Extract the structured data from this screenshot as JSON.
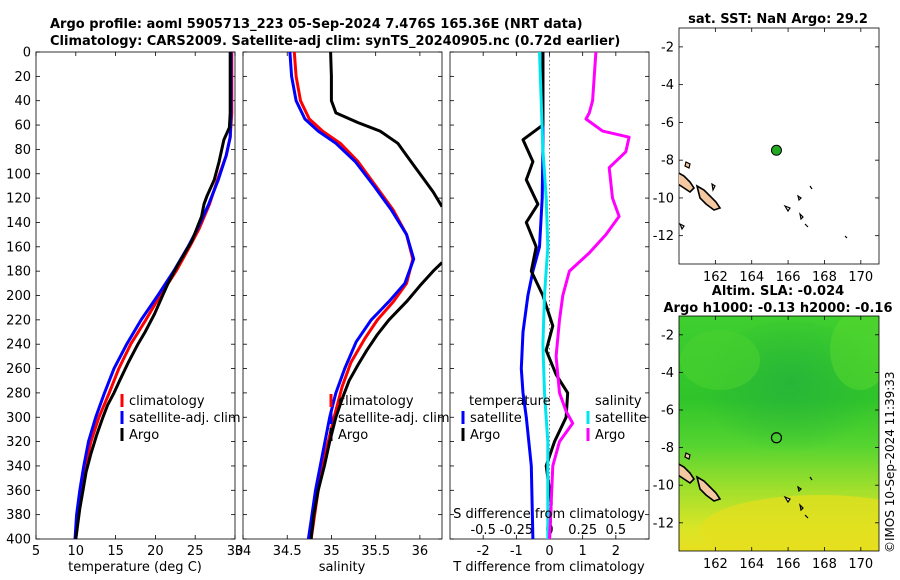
{
  "title": {
    "line1": "Argo profile: aoml 5905713_223 05-Sep-2024 7.476S 165.36E (NRT data)",
    "line2": "Climatology: CARS2009. Satellite-adj clim: synTS_20240905.nc (0.72d earlier)"
  },
  "credit": "©IMOS 10-Sep-2024 11:39:33",
  "depth_axis": {
    "ylim": [
      0,
      400
    ],
    "ticks": [
      0,
      20,
      40,
      60,
      80,
      100,
      120,
      140,
      160,
      180,
      200,
      220,
      240,
      260,
      280,
      300,
      320,
      340,
      360,
      380,
      400
    ]
  },
  "colors": {
    "climatology": "#ff0000",
    "satellite": "#0000ff",
    "argo": "#000000",
    "sat_diff": "#00e5ee",
    "argo_sal_diff": "#ff00ff"
  },
  "chart_data": [
    {
      "type": "line",
      "name": "temperature-profile",
      "xlabel": "temperature (deg C)",
      "xlim": [
        5,
        30
      ],
      "xticks": [
        5,
        10,
        15,
        20,
        25,
        30
      ],
      "legend": [
        "climatology",
        "satellite-adj. clim",
        "Argo"
      ],
      "series": [
        {
          "name": "climatology",
          "color": "#ff0000",
          "points": [
            [
              29.6,
              0
            ],
            [
              29.6,
              20
            ],
            [
              29.6,
              50
            ],
            [
              29.4,
              70
            ],
            [
              28.9,
              85
            ],
            [
              27.8,
              105
            ],
            [
              26.8,
              125
            ],
            [
              25.5,
              145
            ],
            [
              24.3,
              160
            ],
            [
              22.6,
              180
            ],
            [
              20.6,
              200
            ],
            [
              18.8,
              220
            ],
            [
              16.9,
              240
            ],
            [
              15.4,
              260
            ],
            [
              14.2,
              280
            ],
            [
              12.9,
              300
            ],
            [
              11.9,
              320
            ],
            [
              11.2,
              340
            ],
            [
              10.7,
              360
            ],
            [
              10.3,
              380
            ],
            [
              10.0,
              400
            ]
          ]
        },
        {
          "name": "satellite-adj. clim",
          "color": "#0000ff",
          "points": [
            [
              29.5,
              0
            ],
            [
              29.5,
              20
            ],
            [
              29.5,
              50
            ],
            [
              29.4,
              70
            ],
            [
              28.9,
              85
            ],
            [
              27.9,
              105
            ],
            [
              26.7,
              125
            ],
            [
              25.3,
              145
            ],
            [
              24.1,
              160
            ],
            [
              22.3,
              180
            ],
            [
              20.3,
              200
            ],
            [
              18.2,
              220
            ],
            [
              16.4,
              240
            ],
            [
              14.8,
              260
            ],
            [
              13.6,
              280
            ],
            [
              12.5,
              300
            ],
            [
              11.6,
              320
            ],
            [
              11.0,
              340
            ],
            [
              10.5,
              360
            ],
            [
              10.1,
              380
            ],
            [
              9.9,
              400
            ]
          ]
        },
        {
          "name": "Argo",
          "color": "#000000",
          "points": [
            [
              29.4,
              0
            ],
            [
              29.4,
              20
            ],
            [
              29.4,
              50
            ],
            [
              29.3,
              62
            ],
            [
              28.6,
              72
            ],
            [
              28.0,
              90
            ],
            [
              27.4,
              105
            ],
            [
              26.5,
              118
            ],
            [
              26.1,
              125
            ],
            [
              25.8,
              135
            ],
            [
              25.2,
              145
            ],
            [
              24.6,
              155
            ],
            [
              23.7,
              165
            ],
            [
              22.8,
              175
            ],
            [
              21.6,
              190
            ],
            [
              20.9,
              200
            ],
            [
              19.9,
              215
            ],
            [
              18.7,
              230
            ],
            [
              17.8,
              240
            ],
            [
              16.6,
              255
            ],
            [
              15.5,
              270
            ],
            [
              14.8,
              280
            ],
            [
              14.0,
              290
            ],
            [
              13.4,
              300
            ],
            [
              12.6,
              315
            ],
            [
              11.9,
              330
            ],
            [
              11.3,
              345
            ],
            [
              10.9,
              360
            ],
            [
              10.5,
              375
            ],
            [
              10.2,
              390
            ],
            [
              10.0,
              400
            ]
          ]
        }
      ]
    },
    {
      "type": "line",
      "name": "salinity-profile",
      "xlabel": "salinity",
      "xlim": [
        34.0,
        36.25
      ],
      "xticks": [
        34,
        34.5,
        35,
        35.5,
        36
      ],
      "xticklabels": [
        "34",
        "34.5",
        "35",
        "35.5",
        "36"
      ],
      "series": [
        {
          "name": "climatology",
          "color": "#ff0000",
          "points": [
            [
              34.58,
              0
            ],
            [
              34.6,
              20
            ],
            [
              34.65,
              40
            ],
            [
              34.75,
              55
            ],
            [
              34.9,
              65
            ],
            [
              35.1,
              75
            ],
            [
              35.3,
              90
            ],
            [
              35.5,
              110
            ],
            [
              35.7,
              130
            ],
            [
              35.85,
              150
            ],
            [
              35.92,
              170
            ],
            [
              35.85,
              190
            ],
            [
              35.7,
              205
            ],
            [
              35.52,
              220
            ],
            [
              35.38,
              235
            ],
            [
              35.22,
              255
            ],
            [
              35.12,
              275
            ],
            [
              35.03,
              300
            ],
            [
              34.93,
              330
            ],
            [
              34.85,
              360
            ],
            [
              34.8,
              385
            ],
            [
              34.77,
              400
            ]
          ]
        },
        {
          "name": "satellite-adj. clim",
          "color": "#0000ff",
          "points": [
            [
              34.53,
              0
            ],
            [
              34.55,
              20
            ],
            [
              34.6,
              40
            ],
            [
              34.7,
              55
            ],
            [
              34.85,
              65
            ],
            [
              35.05,
              75
            ],
            [
              35.27,
              90
            ],
            [
              35.48,
              110
            ],
            [
              35.68,
              130
            ],
            [
              35.85,
              150
            ],
            [
              35.93,
              170
            ],
            [
              35.83,
              190
            ],
            [
              35.65,
              205
            ],
            [
              35.45,
              220
            ],
            [
              35.28,
              238
            ],
            [
              35.15,
              260
            ],
            [
              35.05,
              280
            ],
            [
              34.98,
              300
            ],
            [
              34.9,
              330
            ],
            [
              34.82,
              360
            ],
            [
              34.77,
              385
            ],
            [
              34.74,
              400
            ]
          ]
        },
        {
          "name": "Argo",
          "color": "#000000",
          "points": [
            [
              34.99,
              0
            ],
            [
              35.0,
              20
            ],
            [
              35.0,
              40
            ],
            [
              35.05,
              50
            ],
            [
              35.3,
              58
            ],
            [
              35.55,
              65
            ],
            [
              35.75,
              75
            ],
            [
              35.85,
              85
            ],
            [
              35.95,
              95
            ],
            [
              36.05,
              105
            ],
            [
              36.15,
              115
            ],
            [
              36.25,
              127
            ]
          ]
        },
        {
          "name": "Argo-deep",
          "color": "#000000",
          "points": [
            [
              36.25,
              173
            ],
            [
              36.15,
              180
            ],
            [
              36.0,
              192
            ],
            [
              35.85,
              205
            ],
            [
              35.65,
              220
            ],
            [
              35.52,
              232
            ],
            [
              35.4,
              245
            ],
            [
              35.3,
              257
            ],
            [
              35.2,
              270
            ],
            [
              35.12,
              285
            ],
            [
              35.05,
              300
            ],
            [
              34.98,
              320
            ],
            [
              34.92,
              340
            ],
            [
              34.85,
              360
            ],
            [
              34.8,
              380
            ],
            [
              34.77,
              400
            ]
          ]
        }
      ]
    },
    {
      "type": "line",
      "name": "difference-profile",
      "xlabel": "T difference from climatology",
      "x2label": "S difference from climatology",
      "xlim": [
        -3,
        3
      ],
      "xticks": [
        -2,
        -1,
        0,
        1,
        2
      ],
      "x2ticks": [
        -0.5,
        -0.25,
        0,
        0.25,
        0.5
      ],
      "x2ticklabels": [
        "-0.5",
        "-0.25",
        "0",
        "0.25",
        "0.5"
      ],
      "legend_t": [
        "temperature",
        "satellite",
        "Argo"
      ],
      "legend_s": [
        "salinity",
        "satellite",
        "Argo"
      ],
      "series": [
        {
          "name": "T satellite",
          "color": "#0000ff",
          "points": [
            [
              -0.2,
              0
            ],
            [
              -0.2,
              40
            ],
            [
              -0.2,
              80
            ],
            [
              -0.22,
              120
            ],
            [
              -0.3,
              160
            ],
            [
              -0.5,
              180
            ],
            [
              -0.65,
              200
            ],
            [
              -0.8,
              230
            ],
            [
              -0.85,
              260
            ],
            [
              -0.8,
              280
            ],
            [
              -0.7,
              300
            ],
            [
              -0.55,
              340
            ],
            [
              -0.5,
              400
            ]
          ]
        },
        {
          "name": "T Argo",
          "color": "#000000",
          "points": [
            [
              -0.2,
              0
            ],
            [
              -0.2,
              60
            ],
            [
              -0.8,
              72
            ],
            [
              -0.5,
              90
            ],
            [
              -0.7,
              105
            ],
            [
              -0.35,
              125
            ],
            [
              -0.7,
              140
            ],
            [
              -0.4,
              160
            ],
            [
              -0.55,
              180
            ],
            [
              -0.2,
              200
            ],
            [
              0.1,
              225
            ],
            [
              -0.1,
              245
            ],
            [
              0.2,
              265
            ],
            [
              0.55,
              280
            ],
            [
              0.5,
              300
            ],
            [
              0.15,
              320
            ],
            [
              -0.1,
              340
            ],
            [
              0.05,
              370
            ],
            [
              0.0,
              400
            ]
          ]
        },
        {
          "name": "S satellite",
          "color": "#00e5ee",
          "points": [
            [
              -0.3,
              0
            ],
            [
              -0.25,
              40
            ],
            [
              -0.2,
              80
            ],
            [
              -0.1,
              120
            ],
            [
              -0.05,
              160
            ],
            [
              -0.15,
              200
            ],
            [
              -0.2,
              240
            ],
            [
              -0.15,
              280
            ],
            [
              -0.05,
              320
            ],
            [
              -0.05,
              360
            ],
            [
              -0.05,
              400
            ]
          ]
        },
        {
          "name": "S Argo",
          "color": "#ff00ff",
          "points": [
            [
              1.4,
              0
            ],
            [
              1.3,
              40
            ],
            [
              1.2,
              50
            ],
            [
              1.1,
              55
            ],
            [
              1.6,
              65
            ],
            [
              2.4,
              70
            ],
            [
              2.3,
              82
            ],
            [
              1.8,
              95
            ],
            [
              1.9,
              120
            ],
            [
              2.1,
              135
            ],
            [
              1.7,
              150
            ],
            [
              1.2,
              165
            ],
            [
              0.6,
              180
            ],
            [
              0.4,
              200
            ],
            [
              0.3,
              220
            ],
            [
              0.2,
              250
            ],
            [
              0.3,
              280
            ],
            [
              0.5,
              295
            ],
            [
              0.7,
              305
            ],
            [
              0.3,
              320
            ],
            [
              0.1,
              340
            ],
            [
              0.05,
              370
            ],
            [
              0.0,
              400
            ]
          ]
        }
      ]
    },
    {
      "type": "map",
      "name": "sst-map",
      "title": "sat. SST: NaN Argo: 29.2",
      "xlim": [
        160,
        171
      ],
      "ylim": [
        -13.5,
        -1
      ],
      "xticks": [
        162,
        164,
        166,
        168,
        170
      ],
      "yticks": [
        -2,
        -4,
        -6,
        -8,
        -10,
        -12
      ],
      "yticklabels": [
        "-2",
        "-4",
        "-6",
        "-8",
        "-10",
        "-12"
      ],
      "float_position": [
        165.36,
        -7.476
      ],
      "marker_color": "#22aa22"
    },
    {
      "type": "heatmap",
      "name": "sla-map",
      "title": "Altim. SLA: -0.024",
      "subtitle": "Argo h1000: -0.13 h2000: -0.16",
      "xlim": [
        160,
        171
      ],
      "ylim": [
        -13.5,
        -1
      ],
      "xticks": [
        162,
        164,
        166,
        168,
        170
      ],
      "yticks": [
        -2,
        -4,
        -6,
        -8,
        -10,
        -12
      ],
      "yticklabels": [
        "-2",
        "-4",
        "-6",
        "-8",
        "-10",
        "-12"
      ],
      "float_position": [
        165.36,
        -7.476
      ]
    }
  ]
}
